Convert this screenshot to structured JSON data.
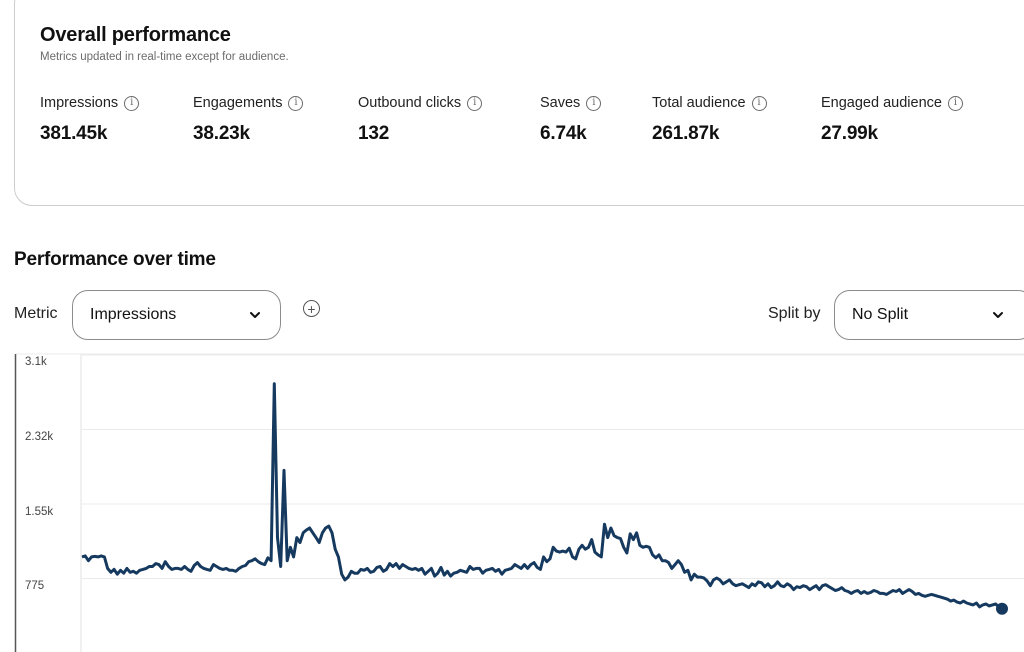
{
  "overall": {
    "title": "Overall performance",
    "subtitle": "Metrics updated in real-time except for audience.",
    "metrics": [
      {
        "label": "Impressions",
        "value": "381.45k",
        "icon": "info-icon"
      },
      {
        "label": "Engagements",
        "value": "38.23k",
        "icon": "info-icon"
      },
      {
        "label": "Outbound clicks",
        "value": "132",
        "icon": "info-icon"
      },
      {
        "label": "Saves",
        "value": "6.74k",
        "icon": "info-icon"
      },
      {
        "label": "Total audience",
        "value": "261.87k",
        "icon": "info-icon"
      },
      {
        "label": "Engaged audience",
        "value": "27.99k",
        "icon": "info-icon"
      }
    ]
  },
  "over_time": {
    "title": "Performance over time",
    "metric_label": "Metric",
    "metric_selected": "Impressions",
    "add_metric_icon": "plus-circle-icon",
    "split_label": "Split by",
    "split_selected": "No Split",
    "chevron_icon": "chevron-down-icon"
  },
  "colors": {
    "line": "#163a5f",
    "grid": "#ebebeb",
    "axis": "#555555",
    "card_border": "#cdcdcd"
  },
  "chart_data": {
    "type": "line",
    "title": "Performance over time",
    "series_name": "Impressions",
    "y_ticks": [
      "3.1k",
      "2.32k",
      "1.55k",
      "775"
    ],
    "y_tick_values": [
      3100,
      2325,
      1550,
      775
    ],
    "ylim": [
      0,
      3100
    ],
    "grid": true,
    "legend": "none",
    "x_labels_visible": false,
    "end_marker": true,
    "values": [
      1000,
      1010,
      960,
      1000,
      1005,
      1000,
      1010,
      1000,
      880,
      840,
      870,
      820,
      860,
      830,
      880,
      840,
      850,
      830,
      860,
      870,
      880,
      900,
      900,
      930,
      920,
      880,
      950,
      900,
      870,
      880,
      880,
      870,
      900,
      870,
      850,
      910,
      940,
      900,
      880,
      870,
      860,
      920,
      900,
      880,
      870,
      880,
      860,
      860,
      850,
      880,
      900,
      910,
      950,
      960,
      980,
      950,
      930,
      920,
      990,
      960,
      2800,
      1200,
      900,
      1900,
      960,
      1100,
      1000,
      1200,
      1150,
      1250,
      1280,
      1300,
      1250,
      1200,
      1150,
      1250,
      1300,
      1320,
      1250,
      1080,
      1000,
      820,
      760,
      790,
      850,
      830,
      830,
      870,
      860,
      880,
      840,
      850,
      890,
      900,
      850,
      870,
      930,
      900,
      930,
      880,
      920,
      900,
      880,
      870,
      880,
      860,
      880,
      820,
      850,
      880,
      800,
      830,
      890,
      810,
      850,
      800,
      830,
      840,
      860,
      850,
      840,
      900,
      870,
      880,
      880,
      830,
      860,
      870,
      880,
      850,
      870,
      820,
      860,
      870,
      880,
      920,
      900,
      880,
      920,
      880,
      920,
      940,
      890,
      870,
      1000,
      950,
      980,
      1100,
      1060,
      1050,
      1060,
      1050,
      1090,
      1000,
      980,
      1080,
      1120,
      1080,
      1100,
      1180,
      1050,
      1020,
      1000,
      1340,
      1200,
      1300,
      1220,
      1200,
      1190,
      1100,
      1040,
      1240,
      1180,
      1250,
      1120,
      1100,
      1110,
      1100,
      1020,
      990,
      1020,
      960,
      960,
      940,
      880,
      920,
      960,
      920,
      840,
      860,
      760,
      820,
      790,
      790,
      780,
      750,
      700,
      760,
      780,
      760,
      720,
      740,
      760,
      720,
      700,
      710,
      720,
      700,
      680,
      720,
      700,
      740,
      730,
      690,
      720,
      680,
      700,
      740,
      700,
      690,
      720,
      700,
      660,
      690,
      680,
      700,
      690,
      660,
      680,
      700,
      660,
      700,
      710,
      690,
      670,
      650,
      660,
      680,
      650,
      640,
      620,
      640,
      650,
      620,
      640,
      620,
      630,
      650,
      640,
      620,
      620,
      610,
      630,
      650,
      640,
      660,
      620,
      640,
      660,
      640,
      610,
      620,
      600,
      590,
      600,
      610,
      600,
      590,
      580,
      570,
      560,
      540,
      550,
      530,
      520,
      540,
      520,
      510,
      500,
      520,
      480,
      500,
      510,
      490,
      500,
      510,
      480,
      460
    ]
  }
}
